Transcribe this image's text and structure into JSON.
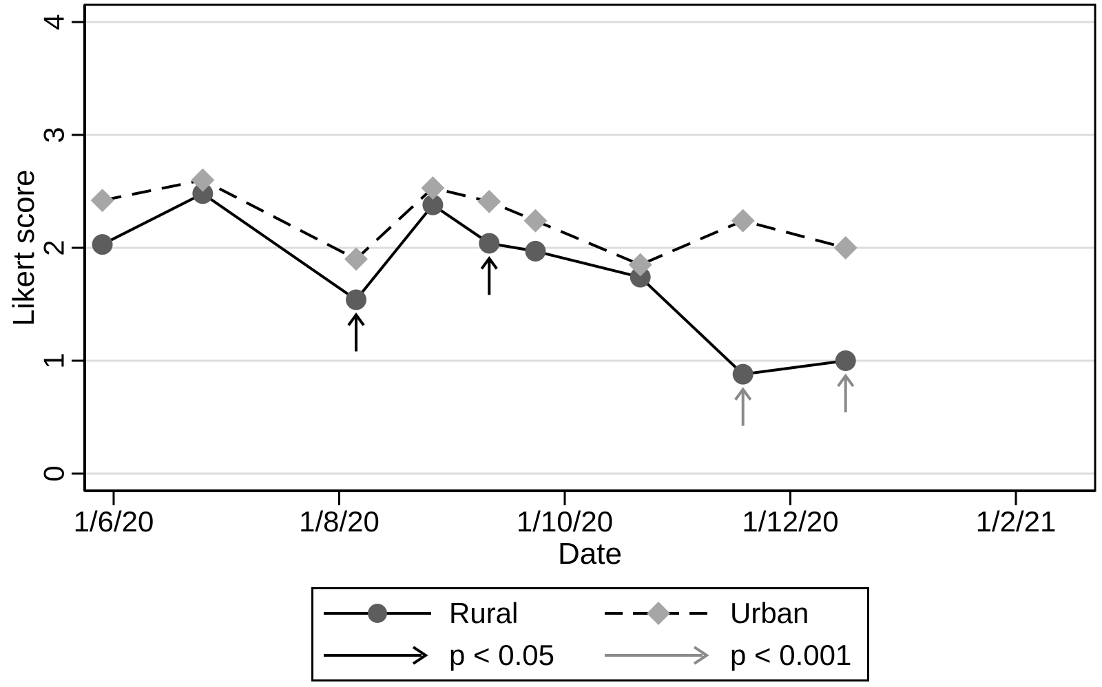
{
  "colors": {
    "rural_marker": "#5d5d5d",
    "urban_marker": "#a6a6a6",
    "line": "#000000",
    "gridline": "#dcdcdc",
    "arrow_p05": "#000000",
    "arrow_p001": "#8a8a8a",
    "background": "#ffffff"
  },
  "chart_data": {
    "type": "line",
    "title": "",
    "xlabel": "Date",
    "ylabel": "Likert score",
    "x_axis": {
      "tick_labels": [
        "1/6/20",
        "1/8/20",
        "1/10/20",
        "1/12/20",
        "1/2/21"
      ],
      "tick_positions_months": [
        0,
        2,
        4,
        6,
        8
      ],
      "range_months": [
        -0.26,
        8.7
      ]
    },
    "y_axis": {
      "tick_labels": [
        "0",
        "1",
        "2",
        "3",
        "4"
      ],
      "tick_values": [
        0,
        1,
        2,
        3,
        4
      ],
      "range": [
        -0.15,
        4.15
      ],
      "grid": true
    },
    "x_months_from_1_6_20": [
      -0.1,
      0.79,
      2.15,
      2.83,
      3.33,
      3.74,
      4.67,
      5.58,
      6.49
    ],
    "series": [
      {
        "name": "Rural",
        "marker": "circle",
        "line_style": "solid",
        "values": [
          2.03,
          2.48,
          1.54,
          2.38,
          2.04,
          1.97,
          1.74,
          0.88,
          1.0
        ]
      },
      {
        "name": "Urban",
        "marker": "diamond",
        "line_style": "dashed",
        "values": [
          2.42,
          2.6,
          1.9,
          2.53,
          2.41,
          2.24,
          1.85,
          2.24,
          2.0
        ]
      }
    ],
    "arrows": [
      {
        "point_index": 2,
        "series": "Rural",
        "significance": "p < 0.05",
        "color": "#000000"
      },
      {
        "point_index": 4,
        "series": "Rural",
        "significance": "p < 0.05",
        "color": "#000000"
      },
      {
        "point_index": 7,
        "series": "Rural",
        "significance": "p < 0.001",
        "color": "#8a8a8a"
      },
      {
        "point_index": 8,
        "series": "Rural",
        "significance": "p < 0.001",
        "color": "#8a8a8a"
      }
    ],
    "legend": {
      "position": "bottom",
      "entries": [
        {
          "label": "Rural",
          "symbol": "solid-line-circle-marker"
        },
        {
          "label": "Urban",
          "symbol": "dashed-line-diamond-marker"
        },
        {
          "label": "p < 0.05",
          "symbol": "black-right-arrow"
        },
        {
          "label": "p < 0.001",
          "symbol": "gray-right-arrow"
        }
      ]
    }
  }
}
